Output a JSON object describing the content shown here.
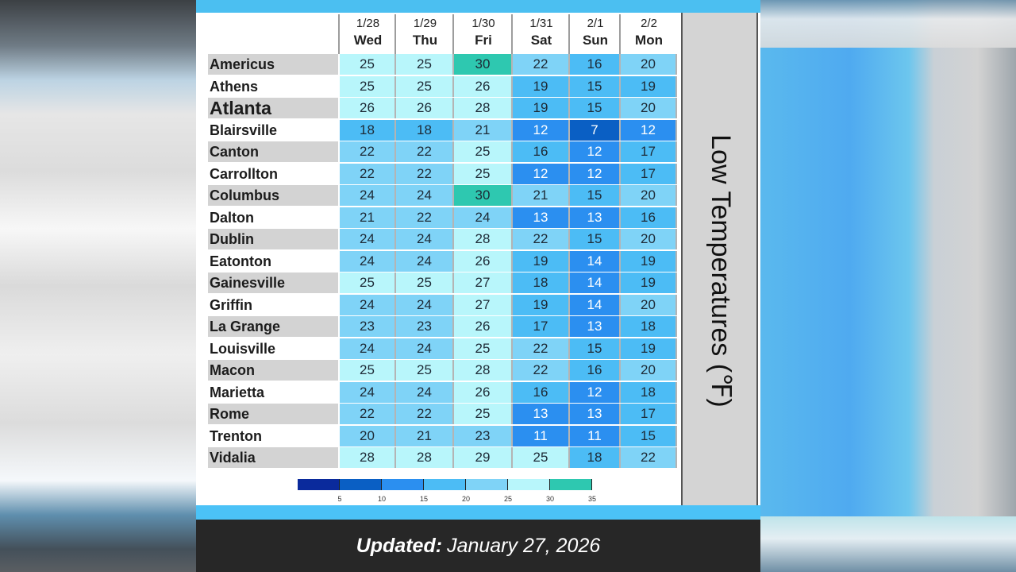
{
  "footer": {
    "updated_label": "Updated:",
    "updated_date": "January 27, 2026"
  },
  "title": "Low Temperatures (℉)",
  "columns": [
    {
      "date": "1/28",
      "day": "Wed"
    },
    {
      "date": "1/29",
      "day": "Thu"
    },
    {
      "date": "1/30",
      "day": "Fri"
    },
    {
      "date": "1/31",
      "day": "Sat"
    },
    {
      "date": "2/1",
      "day": "Sun"
    },
    {
      "date": "2/2",
      "day": "Mon"
    }
  ],
  "rows": [
    {
      "city": "Americus",
      "values": [
        "25",
        "25",
        "30",
        "22",
        "16",
        "20"
      ]
    },
    {
      "city": "Athens",
      "values": [
        "25",
        "25",
        "26",
        "19",
        "15",
        "19"
      ]
    },
    {
      "city": "Atlanta",
      "values": [
        "26",
        "26",
        "28",
        "19",
        "15",
        "20"
      ]
    },
    {
      "city": "Blairsville",
      "values": [
        "18",
        "18",
        "21",
        "12",
        "7",
        "12"
      ]
    },
    {
      "city": "Canton",
      "values": [
        "22",
        "22",
        "25",
        "16",
        "12",
        "17"
      ]
    },
    {
      "city": "Carrollton",
      "values": [
        "22",
        "22",
        "25",
        "12",
        "12",
        "17"
      ]
    },
    {
      "city": "Columbus",
      "values": [
        "24",
        "24",
        "30",
        "21",
        "15",
        "20"
      ]
    },
    {
      "city": "Dalton",
      "values": [
        "21",
        "22",
        "24",
        "13",
        "13",
        "16"
      ]
    },
    {
      "city": "Dublin",
      "values": [
        "24",
        "24",
        "28",
        "22",
        "15",
        "20"
      ]
    },
    {
      "city": "Eatonton",
      "values": [
        "24",
        "24",
        "26",
        "19",
        "14",
        "19"
      ]
    },
    {
      "city": "Gainesville",
      "values": [
        "25",
        "25",
        "27",
        "18",
        "14",
        "19"
      ]
    },
    {
      "city": "Griffin",
      "values": [
        "24",
        "24",
        "27",
        "19",
        "14",
        "20"
      ]
    },
    {
      "city": "La Grange",
      "values": [
        "23",
        "23",
        "26",
        "17",
        "13",
        "18"
      ]
    },
    {
      "city": "Louisville",
      "values": [
        "24",
        "24",
        "25",
        "22",
        "15",
        "19"
      ]
    },
    {
      "city": "Macon",
      "values": [
        "25",
        "25",
        "28",
        "22",
        "16",
        "20"
      ]
    },
    {
      "city": "Marietta",
      "values": [
        "24",
        "24",
        "26",
        "16",
        "12",
        "18"
      ]
    },
    {
      "city": "Rome",
      "values": [
        "22",
        "22",
        "25",
        "13",
        "13",
        "17"
      ]
    },
    {
      "city": "Trenton",
      "values": [
        "20",
        "21",
        "23",
        "11",
        "11",
        "15"
      ]
    },
    {
      "city": "Vidalia",
      "values": [
        "28",
        "28",
        "29",
        "25",
        "18",
        "22"
      ]
    }
  ],
  "legend": {
    "ticks": [
      "5",
      "10",
      "15",
      "20",
      "25",
      "30",
      "35"
    ],
    "colors": [
      "#0a2a9c",
      "#0a5fc4",
      "#2b8ff0",
      "#4cbcf5",
      "#7fd3f7",
      "#b8f6fb",
      "#2ec8b0"
    ]
  },
  "chart_data": {
    "type": "heatmap",
    "title": "Low Temperatures (°F)",
    "subtitle": "Updated: January 27, 2026",
    "x": [
      "1/28 Wed",
      "1/29 Thu",
      "1/30 Fri",
      "1/31 Sat",
      "2/1 Sun",
      "2/2 Mon"
    ],
    "y": [
      "Americus",
      "Athens",
      "Atlanta",
      "Blairsville",
      "Canton",
      "Carrollton",
      "Columbus",
      "Dalton",
      "Dublin",
      "Eatonton",
      "Gainesville",
      "Griffin",
      "La Grange",
      "Louisville",
      "Macon",
      "Marietta",
      "Rome",
      "Trenton",
      "Vidalia"
    ],
    "values": [
      [
        25,
        25,
        30,
        22,
        16,
        20
      ],
      [
        25,
        25,
        26,
        19,
        15,
        19
      ],
      [
        26,
        26,
        28,
        19,
        15,
        20
      ],
      [
        18,
        18,
        21,
        12,
        7,
        12
      ],
      [
        22,
        22,
        25,
        16,
        12,
        17
      ],
      [
        22,
        22,
        25,
        12,
        12,
        17
      ],
      [
        24,
        24,
        30,
        21,
        15,
        20
      ],
      [
        21,
        22,
        24,
        13,
        13,
        16
      ],
      [
        24,
        24,
        28,
        22,
        15,
        20
      ],
      [
        24,
        24,
        26,
        19,
        14,
        19
      ],
      [
        25,
        25,
        27,
        18,
        14,
        19
      ],
      [
        24,
        24,
        27,
        19,
        14,
        20
      ],
      [
        23,
        23,
        26,
        17,
        13,
        18
      ],
      [
        24,
        24,
        25,
        22,
        15,
        19
      ],
      [
        25,
        25,
        28,
        22,
        16,
        20
      ],
      [
        24,
        24,
        26,
        16,
        12,
        18
      ],
      [
        22,
        22,
        25,
        13,
        13,
        17
      ],
      [
        20,
        21,
        23,
        11,
        11,
        15
      ],
      [
        28,
        28,
        29,
        25,
        18,
        22
      ]
    ],
    "colorbar": {
      "ticks": [
        5,
        10,
        15,
        20,
        25,
        30,
        35
      ],
      "range": [
        0,
        35
      ]
    },
    "xlabel": "",
    "ylabel": ""
  }
}
